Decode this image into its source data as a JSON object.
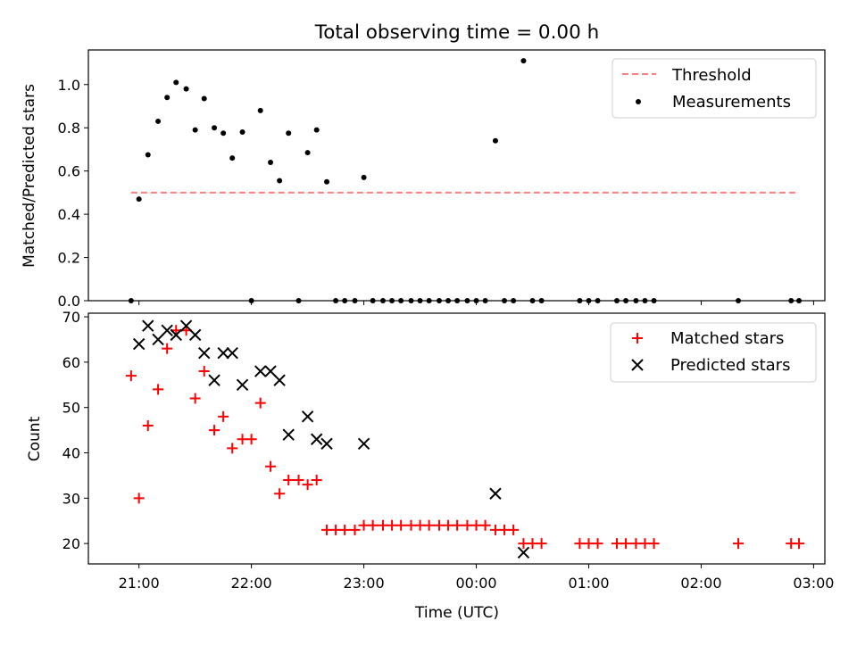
{
  "chart_data": [
    {
      "type": "scatter",
      "title": "Total observing time = 0.00 h",
      "xlabel": "",
      "ylabel": "Matched/Predicted stars",
      "x_unit": "hours (UTC), >24 means next day",
      "xlim": [
        20.55,
        27.1
      ],
      "ylim": [
        0,
        1.16
      ],
      "yticks": [
        0.0,
        0.2,
        0.4,
        0.6,
        0.8,
        1.0
      ],
      "ytick_labels": [
        "0.0",
        "0.2",
        "0.4",
        "0.6",
        "0.8",
        "1.0"
      ],
      "threshold": {
        "name": "Threshold",
        "y": 0.5,
        "x_range": [
          20.93,
          26.87
        ],
        "color": "#ff7f7f"
      },
      "series": [
        {
          "name": "Measurements",
          "color": "#000000",
          "marker": "dot",
          "points": [
            [
              20.93,
              0.0
            ],
            [
              21.0,
              0.47
            ],
            [
              21.08,
              0.675
            ],
            [
              21.17,
              0.83
            ],
            [
              21.25,
              0.94
            ],
            [
              21.33,
              1.01
            ],
            [
              21.42,
              0.98
            ],
            [
              21.5,
              0.79
            ],
            [
              21.58,
              0.935
            ],
            [
              21.67,
              0.8
            ],
            [
              21.75,
              0.775
            ],
            [
              21.83,
              0.66
            ],
            [
              21.92,
              0.78
            ],
            [
              22.0,
              0.0
            ],
            [
              22.08,
              0.88
            ],
            [
              22.17,
              0.64
            ],
            [
              22.25,
              0.555
            ],
            [
              22.33,
              0.775
            ],
            [
              22.42,
              0.0
            ],
            [
              22.5,
              0.685
            ],
            [
              22.58,
              0.79
            ],
            [
              22.67,
              0.55
            ],
            [
              22.75,
              0.0
            ],
            [
              22.83,
              0.0
            ],
            [
              22.92,
              0.0
            ],
            [
              23.0,
              0.57
            ],
            [
              23.08,
              0.0
            ],
            [
              23.17,
              0.0
            ],
            [
              23.25,
              0.0
            ],
            [
              23.33,
              0.0
            ],
            [
              23.42,
              0.0
            ],
            [
              23.5,
              0.0
            ],
            [
              23.58,
              0.0
            ],
            [
              23.67,
              0.0
            ],
            [
              23.75,
              0.0
            ],
            [
              23.83,
              0.0
            ],
            [
              23.92,
              0.0
            ],
            [
              24.0,
              0.0
            ],
            [
              24.08,
              0.0
            ],
            [
              24.17,
              0.74
            ],
            [
              24.25,
              0.0
            ],
            [
              24.33,
              0.0
            ],
            [
              24.42,
              1.11
            ],
            [
              24.5,
              0.0
            ],
            [
              24.58,
              0.0
            ],
            [
              24.92,
              0.0
            ],
            [
              25.0,
              0.0
            ],
            [
              25.08,
              0.0
            ],
            [
              25.25,
              0.0
            ],
            [
              25.33,
              0.0
            ],
            [
              25.42,
              0.0
            ],
            [
              25.5,
              0.0
            ],
            [
              25.58,
              0.0
            ],
            [
              26.33,
              0.0
            ],
            [
              26.8,
              0.0
            ],
            [
              26.87,
              0.0
            ]
          ]
        }
      ],
      "legend": {
        "placement": "top-right",
        "entries": [
          "Threshold",
          "Measurements"
        ]
      }
    },
    {
      "type": "scatter",
      "title": "",
      "xlabel": "Time (UTC)",
      "ylabel": "Count",
      "x_unit": "hours (UTC), >24 means next day",
      "xlim": [
        20.55,
        27.1
      ],
      "ylim": [
        15.5,
        70.8
      ],
      "xticks": [
        21,
        22,
        23,
        24,
        25,
        26,
        27
      ],
      "xtick_labels": [
        "21:00",
        "22:00",
        "23:00",
        "00:00",
        "01:00",
        "02:00",
        "03:00"
      ],
      "yticks": [
        20,
        30,
        40,
        50,
        60,
        70
      ],
      "ytick_labels": [
        "20",
        "30",
        "40",
        "50",
        "60",
        "70"
      ],
      "series": [
        {
          "name": "Matched stars",
          "color": "#ff0000",
          "marker": "plus",
          "points": [
            [
              20.93,
              57
            ],
            [
              21.0,
              30
            ],
            [
              21.08,
              46
            ],
            [
              21.17,
              54
            ],
            [
              21.25,
              63
            ],
            [
              21.33,
              67
            ],
            [
              21.42,
              67
            ],
            [
              21.5,
              52
            ],
            [
              21.58,
              58
            ],
            [
              21.67,
              45
            ],
            [
              21.75,
              48
            ],
            [
              21.83,
              41
            ],
            [
              21.92,
              43
            ],
            [
              22.0,
              43
            ],
            [
              22.08,
              51
            ],
            [
              22.17,
              37
            ],
            [
              22.25,
              31
            ],
            [
              22.33,
              34
            ],
            [
              22.42,
              34
            ],
            [
              22.5,
              33
            ],
            [
              22.58,
              34
            ],
            [
              22.67,
              23
            ],
            [
              22.75,
              23
            ],
            [
              22.83,
              23
            ],
            [
              22.92,
              23
            ],
            [
              23.0,
              24
            ],
            [
              23.08,
              24
            ],
            [
              23.17,
              24
            ],
            [
              23.25,
              24
            ],
            [
              23.33,
              24
            ],
            [
              23.42,
              24
            ],
            [
              23.5,
              24
            ],
            [
              23.58,
              24
            ],
            [
              23.67,
              24
            ],
            [
              23.75,
              24
            ],
            [
              23.83,
              24
            ],
            [
              23.92,
              24
            ],
            [
              24.0,
              24
            ],
            [
              24.08,
              24
            ],
            [
              24.17,
              23
            ],
            [
              24.25,
              23
            ],
            [
              24.33,
              23
            ],
            [
              24.42,
              20
            ],
            [
              24.5,
              20
            ],
            [
              24.58,
              20
            ],
            [
              24.92,
              20
            ],
            [
              25.0,
              20
            ],
            [
              25.08,
              20
            ],
            [
              25.25,
              20
            ],
            [
              25.33,
              20
            ],
            [
              25.42,
              20
            ],
            [
              25.5,
              20
            ],
            [
              25.58,
              20
            ],
            [
              26.33,
              20
            ],
            [
              26.8,
              20
            ],
            [
              26.87,
              20
            ]
          ]
        },
        {
          "name": "Predicted stars",
          "color": "#000000",
          "marker": "x",
          "points": [
            [
              21.0,
              64
            ],
            [
              21.08,
              68
            ],
            [
              21.17,
              65
            ],
            [
              21.25,
              67
            ],
            [
              21.33,
              66
            ],
            [
              21.42,
              68
            ],
            [
              21.5,
              66
            ],
            [
              21.58,
              62
            ],
            [
              21.67,
              56
            ],
            [
              21.75,
              62
            ],
            [
              21.83,
              62
            ],
            [
              21.92,
              55
            ],
            [
              22.08,
              58
            ],
            [
              22.17,
              58
            ],
            [
              22.25,
              56
            ],
            [
              22.33,
              44
            ],
            [
              22.5,
              48
            ],
            [
              22.58,
              43
            ],
            [
              22.67,
              42
            ],
            [
              23.0,
              42
            ],
            [
              24.17,
              31
            ],
            [
              24.42,
              18
            ]
          ]
        }
      ],
      "legend": {
        "placement": "top-right",
        "entries": [
          "Matched stars",
          "Predicted stars"
        ]
      }
    }
  ]
}
